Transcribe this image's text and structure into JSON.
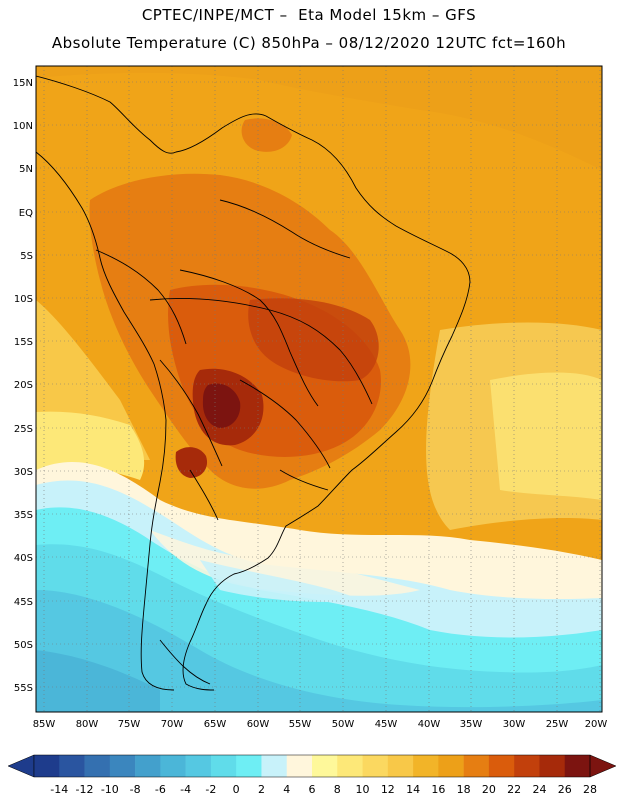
{
  "header": {
    "line1": "CPTEC/INPE/MCT –  Eta Model 15km – GFS",
    "line2": "Absolute Temperature (C) 850hPa – 08/12/2020 12UTC fct=160h"
  },
  "map": {
    "lat_ticks": [
      "15N",
      "10N",
      "5N",
      "EQ",
      "5S",
      "10S",
      "15S",
      "20S",
      "25S",
      "30S",
      "35S",
      "40S",
      "45S",
      "50S",
      "55S"
    ],
    "lon_ticks": [
      "85W",
      "80W",
      "75W",
      "70W",
      "65W",
      "60W",
      "55W",
      "50W",
      "45W",
      "40W",
      "35W",
      "30W",
      "25W",
      "20W"
    ]
  },
  "colorbar": {
    "labels": [
      "-14",
      "-12",
      "-10",
      "-8",
      "-6",
      "-4",
      "-2",
      "0",
      "2",
      "4",
      "6",
      "8",
      "10",
      "12",
      "14",
      "16",
      "18",
      "20",
      "22",
      "24",
      "26",
      "28"
    ],
    "colors": [
      "#1e3c8c",
      "#2a55a0",
      "#3470b0",
      "#3b86be",
      "#43a0cc",
      "#4bb6d8",
      "#55c8e2",
      "#60dcea",
      "#6eeef4",
      "#c8f2fa",
      "#fff6dc",
      "#fef89a",
      "#fde878",
      "#fbd860",
      "#f8c848",
      "#f2b428",
      "#eda018",
      "#e67e12",
      "#da5c0c",
      "#c2400c",
      "#a62a0a",
      "#7c1410"
    ]
  }
}
